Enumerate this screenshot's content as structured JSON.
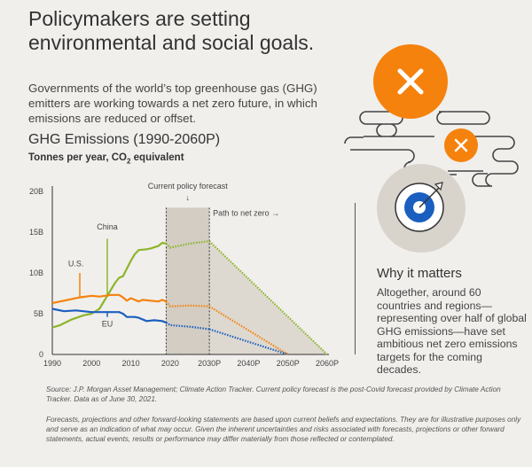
{
  "title": "Policymakers are setting environmental and social goals.",
  "intro": "Governments of the world’s top greenhouse gas (GHG) emitters are working towards a net zero future, in which emissions are reduced or offset.",
  "why": {
    "heading": "Why it matters",
    "text": "Altogether, around 60 countries and regions—representing over half of global GHG emissions—have set ambitious net zero emissions targets for the coming decades."
  },
  "source": "Source: J.P. Morgan Asset Management; Climate Action Tracker. Current policy forecast is the post-Covid forecast provided by Climate Action Tracker. Data as of June 30, 2021.",
  "disclaimer": "Forecasts, projections and other forward-looking statements are based upon current beliefs and expectations. They are for illustrative purposes only and serve as an indication of what may occur. Given the inherent uncertainties and risks associated with forecasts, projections or other forward statements, actual events, results or performance may differ materially from those reflected or contemplated.",
  "icons": {
    "large": "close-x-icon",
    "small": "close-x-icon",
    "target": "target-arrow-icon",
    "accent": "#f5820d",
    "blue": "#1a5fbf"
  },
  "chart_data": {
    "type": "line",
    "title": "GHG Emissions (1990-2060P)",
    "subtitle_main": "Tonnes per year, CO",
    "subtitle_sub": "2",
    "subtitle_tail": " equivalent",
    "ylim": [
      0,
      20
    ],
    "xlim": [
      1990,
      2060
    ],
    "yticks": [
      {
        "v": 0,
        "label": "0"
      },
      {
        "v": 5,
        "label": "5B"
      },
      {
        "v": 10,
        "label": "10B"
      },
      {
        "v": 15,
        "label": "15B"
      },
      {
        "v": 20,
        "label": "20B"
      }
    ],
    "xticks": [
      {
        "v": 1990,
        "label": "1990"
      },
      {
        "v": 2000,
        "label": "2000"
      },
      {
        "v": 2010,
        "label": "2010"
      },
      {
        "v": 2020,
        "label": "2020"
      },
      {
        "v": 2030,
        "label": "2030P"
      },
      {
        "v": 2040,
        "label": "2040P"
      },
      {
        "v": 2050,
        "label": "2050P"
      },
      {
        "v": 2060,
        "label": "2060P"
      }
    ],
    "annotations": {
      "forecast": "Current policy forecast",
      "forecast_arrow": "↓",
      "netzero": "Path to net zero →",
      "forecast_range": [
        2019,
        2030
      ],
      "shade_top": 18
    },
    "series": [
      {
        "name": "China",
        "color": "#8db52a",
        "label_at": [
          2004,
          14.2
        ],
        "label_pos": [
          2004,
          15.3
        ],
        "historical": [
          [
            1990,
            3.3
          ],
          [
            1992,
            3.6
          ],
          [
            1995,
            4.3
          ],
          [
            1998,
            4.8
          ],
          [
            2000,
            5.0
          ],
          [
            2002,
            5.6
          ],
          [
            2004,
            7.2
          ],
          [
            2006,
            8.8
          ],
          [
            2007,
            9.4
          ],
          [
            2008,
            9.6
          ],
          [
            2010,
            11.5
          ],
          [
            2011,
            12.3
          ],
          [
            2012,
            12.8
          ],
          [
            2014,
            12.9
          ],
          [
            2015,
            13.0
          ],
          [
            2017,
            13.3
          ],
          [
            2018,
            13.7
          ],
          [
            2019,
            13.6
          ]
        ],
        "forecast": [
          [
            2019,
            13.6
          ],
          [
            2020,
            13.1
          ],
          [
            2025,
            13.6
          ],
          [
            2030,
            13.9
          ]
        ],
        "netzero": [
          [
            2030,
            13.9
          ],
          [
            2060,
            0
          ]
        ]
      },
      {
        "name": "U.S.",
        "color": "#f5820d",
        "label_at": [
          1997,
          10.0
        ],
        "label_pos": [
          1996,
          10.8
        ],
        "historical": [
          [
            1990,
            6.3
          ],
          [
            1992,
            6.5
          ],
          [
            1995,
            6.8
          ],
          [
            1997,
            7.0
          ],
          [
            2000,
            7.2
          ],
          [
            2002,
            7.1
          ],
          [
            2005,
            7.3
          ],
          [
            2007,
            7.3
          ],
          [
            2008,
            7.0
          ],
          [
            2009,
            6.6
          ],
          [
            2010,
            6.9
          ],
          [
            2012,
            6.5
          ],
          [
            2013,
            6.7
          ],
          [
            2015,
            6.6
          ],
          [
            2017,
            6.5
          ],
          [
            2018,
            6.7
          ],
          [
            2019,
            6.5
          ]
        ],
        "forecast": [
          [
            2019,
            6.5
          ],
          [
            2020,
            5.9
          ],
          [
            2025,
            6.0
          ],
          [
            2030,
            5.9
          ]
        ],
        "netzero": [
          [
            2030,
            5.9
          ],
          [
            2050,
            0
          ]
        ]
      },
      {
        "name": "EU",
        "color": "#1a5fbf",
        "label_at": [
          2004,
          4.6
        ],
        "label_pos": [
          2004,
          3.4
        ],
        "historical": [
          [
            1990,
            5.6
          ],
          [
            1993,
            5.3
          ],
          [
            1996,
            5.4
          ],
          [
            2000,
            5.2
          ],
          [
            2004,
            5.2
          ],
          [
            2007,
            5.2
          ],
          [
            2008,
            5.0
          ],
          [
            2009,
            4.6
          ],
          [
            2011,
            4.6
          ],
          [
            2012,
            4.5
          ],
          [
            2014,
            4.1
          ],
          [
            2016,
            4.2
          ],
          [
            2018,
            4.1
          ],
          [
            2019,
            3.9
          ]
        ],
        "forecast": [
          [
            2019,
            3.9
          ],
          [
            2020,
            3.6
          ],
          [
            2025,
            3.4
          ],
          [
            2030,
            3.1
          ]
        ],
        "netzero": [
          [
            2030,
            3.1
          ],
          [
            2050,
            0
          ]
        ]
      }
    ]
  }
}
